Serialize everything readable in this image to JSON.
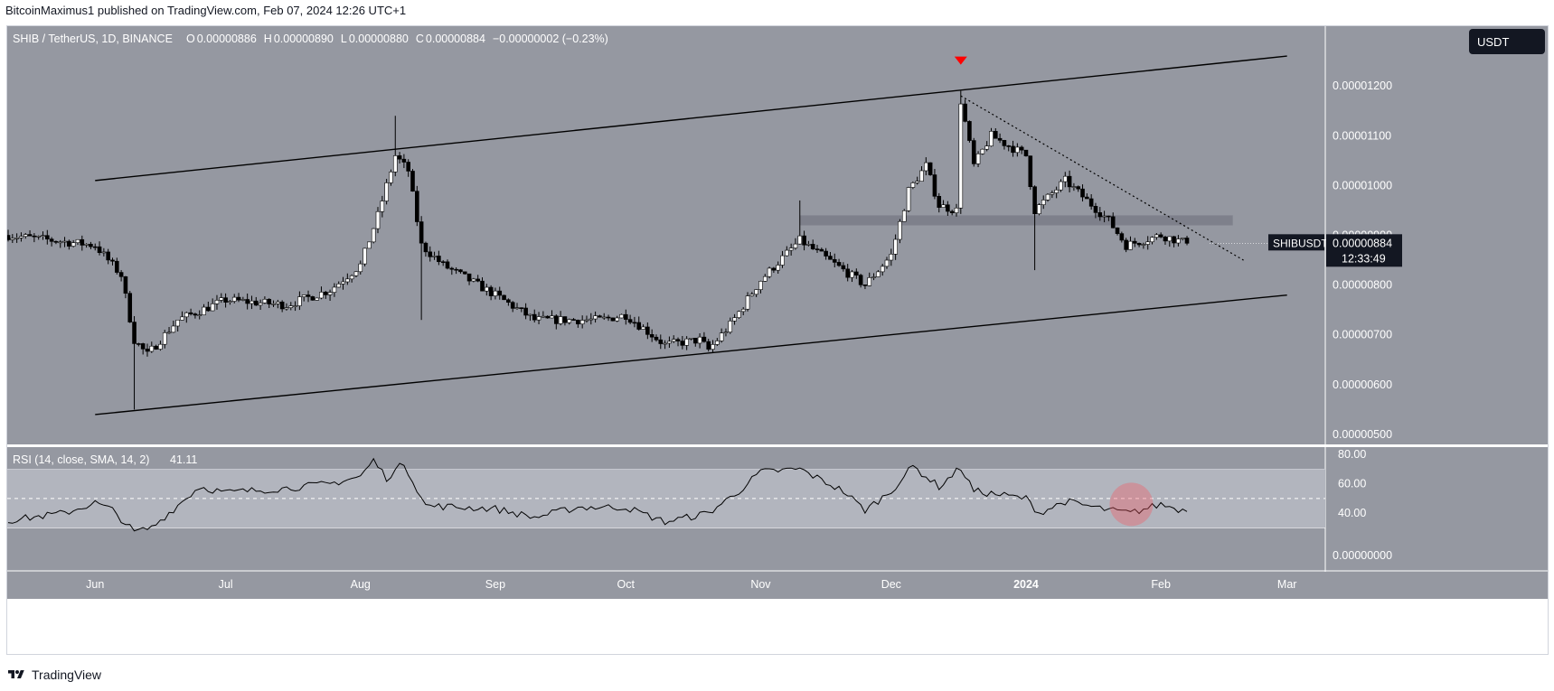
{
  "header": {
    "published": "BitcoinMaximus1 published on TradingView.com, Feb 07, 2024 12:26 UTC+1"
  },
  "legend": {
    "symbol": "SHIB / TetherUS, 1D, BINANCE",
    "o_label": "O",
    "o_value": "0.00000886",
    "h_label": "H",
    "h_value": "0.00000890",
    "l_label": "L",
    "l_value": "0.00000880",
    "c_label": "C",
    "c_value": "0.00000884",
    "change": "−0.00000002 (−0.23%)"
  },
  "currency_button": "USDT",
  "price_tag": {
    "label": "SHIBUSDT",
    "price": "0.00000884",
    "countdown": "12:33:49"
  },
  "rsi_legend": {
    "label": "RSI (14, close, SMA, 14, 2)",
    "value": "41.11"
  },
  "footer": {
    "brand": "TradingView"
  },
  "colors": {
    "background": "#9598a1",
    "bull": "#ffffff",
    "bear": "#000000",
    "trendline": "#000000",
    "zone": "#787b86",
    "rsi_band": "#b2b5be",
    "marker": "#ff0000",
    "highlight": "#f7525f"
  },
  "chart_data": [
    {
      "type": "candlestick",
      "title": "SHIB / TetherUS, 1D, BINANCE",
      "y_axis_labels": [
        "0.00001200",
        "0.00001100",
        "0.00001000",
        "0.00000900",
        "0.00000800",
        "0.00000700",
        "0.00000600",
        "0.00000500"
      ],
      "x_axis_labels": [
        "Jun",
        "Jul",
        "Aug",
        "Sep",
        "Oct",
        "Nov",
        "Dec",
        "2024",
        "Feb",
        "Mar"
      ],
      "x_axis_dates": [
        "2023-06-01",
        "2023-07-01",
        "2023-08-01",
        "2023-09-01",
        "2023-10-01",
        "2023-11-01",
        "2023-12-01",
        "2024-01-01",
        "2024-02-01",
        "2024-03-01"
      ],
      "x_range": [
        "2023-05-12",
        "2024-03-10"
      ],
      "ylim": [
        4.8e-06,
        1.32e-05
      ],
      "last_price": 8.84e-06,
      "key_points": [
        {
          "date": "2023-05-12",
          "close": 9e-06
        },
        {
          "date": "2023-06-01",
          "close": 8.8e-06
        },
        {
          "date": "2023-06-07",
          "close": 8.2e-06
        },
        {
          "date": "2023-06-10",
          "close": 6.9e-06,
          "low": 5.5e-06
        },
        {
          "date": "2023-06-13",
          "close": 6.6e-06
        },
        {
          "date": "2023-06-20",
          "close": 7.3e-06
        },
        {
          "date": "2023-07-01",
          "close": 7.7e-06
        },
        {
          "date": "2023-07-15",
          "close": 7.6e-06
        },
        {
          "date": "2023-07-25",
          "close": 7.9e-06
        },
        {
          "date": "2023-08-01",
          "close": 8.4e-06
        },
        {
          "date": "2023-08-05",
          "close": 9.4e-06
        },
        {
          "date": "2023-08-09",
          "close": 1.06e-05,
          "high": 1.14e-05
        },
        {
          "date": "2023-08-12",
          "close": 1.03e-05
        },
        {
          "date": "2023-08-15",
          "close": 8.8e-06,
          "low": 7.3e-06
        },
        {
          "date": "2023-08-20",
          "close": 8.4e-06
        },
        {
          "date": "2023-09-01",
          "close": 7.8e-06
        },
        {
          "date": "2023-09-10",
          "close": 7.3e-06
        },
        {
          "date": "2023-09-25",
          "close": 7.3e-06
        },
        {
          "date": "2023-10-01",
          "close": 7.4e-06
        },
        {
          "date": "2023-10-10",
          "close": 6.8e-06
        },
        {
          "date": "2023-10-18",
          "close": 6.9e-06
        },
        {
          "date": "2023-10-20",
          "close": 6.7e-06
        },
        {
          "date": "2023-10-25",
          "close": 7.2e-06
        },
        {
          "date": "2023-11-01",
          "close": 8.1e-06
        },
        {
          "date": "2023-11-10",
          "close": 8.9e-06,
          "high": 9.7e-06
        },
        {
          "date": "2023-11-20",
          "close": 8.3e-06
        },
        {
          "date": "2023-11-25",
          "close": 8e-06
        },
        {
          "date": "2023-12-01",
          "close": 8.6e-06
        },
        {
          "date": "2023-12-05",
          "close": 9.9e-06
        },
        {
          "date": "2023-12-09",
          "close": 1.04e-05
        },
        {
          "date": "2023-12-12",
          "close": 9.6e-06
        },
        {
          "date": "2023-12-16",
          "close": 9.5e-06
        },
        {
          "date": "2023-12-17",
          "close": 1.17e-05,
          "high": 1.19e-05
        },
        {
          "date": "2023-12-20",
          "close": 1.04e-05
        },
        {
          "date": "2023-12-24",
          "close": 1.1e-05
        },
        {
          "date": "2024-01-01",
          "close": 1.06e-05
        },
        {
          "date": "2024-01-03",
          "close": 9.5e-06,
          "low": 8.3e-06
        },
        {
          "date": "2024-01-10",
          "close": 1.01e-05
        },
        {
          "date": "2024-01-20",
          "close": 9.3e-06
        },
        {
          "date": "2024-01-24",
          "close": 8.8e-06
        },
        {
          "date": "2024-02-01",
          "close": 9e-06
        },
        {
          "date": "2024-02-07",
          "close": 8.84e-06
        }
      ],
      "annotations": {
        "channel_upper": [
          {
            "date": "2023-06-01",
            "price": 1.01e-05
          },
          {
            "date": "2024-03-01",
            "price": 1.26e-05
          }
        ],
        "channel_lower": [
          {
            "date": "2023-06-01",
            "price": 5.4e-06
          },
          {
            "date": "2024-03-01",
            "price": 7.8e-06
          }
        ],
        "descending_trendline": [
          {
            "date": "2023-12-17",
            "price": 1.18e-05
          },
          {
            "date": "2024-02-20",
            "price": 8.5e-06
          }
        ],
        "horizontal_zone": {
          "from_date": "2023-11-10",
          "to_date": "2024-03-01",
          "low": 9.2e-06,
          "high": 9.4e-06
        },
        "top_marker": {
          "date": "2023-12-17",
          "price": 1.25e-05
        }
      }
    },
    {
      "type": "line",
      "title": "RSI (14, close, SMA, 14, 2)",
      "y_axis_labels": [
        "80.00",
        "60.00",
        "40.00",
        "0.00000000"
      ],
      "ylim": [
        0,
        85
      ],
      "band": [
        30,
        70
      ],
      "midline": 50,
      "last_value": 41.11,
      "key_points": [
        {
          "date": "2023-05-12",
          "value": 35
        },
        {
          "date": "2023-05-25",
          "value": 40
        },
        {
          "date": "2023-06-01",
          "value": 47
        },
        {
          "date": "2023-06-05",
          "value": 42
        },
        {
          "date": "2023-06-10",
          "value": 27
        },
        {
          "date": "2023-06-14",
          "value": 30
        },
        {
          "date": "2023-06-25",
          "value": 58
        },
        {
          "date": "2023-07-01",
          "value": 54
        },
        {
          "date": "2023-07-15",
          "value": 57
        },
        {
          "date": "2023-07-25",
          "value": 60
        },
        {
          "date": "2023-08-01",
          "value": 65
        },
        {
          "date": "2023-08-04",
          "value": 76
        },
        {
          "date": "2023-08-07",
          "value": 64
        },
        {
          "date": "2023-08-11",
          "value": 74
        },
        {
          "date": "2023-08-16",
          "value": 45
        },
        {
          "date": "2023-09-01",
          "value": 43
        },
        {
          "date": "2023-09-10",
          "value": 37
        },
        {
          "date": "2023-09-20",
          "value": 44
        },
        {
          "date": "2023-10-01",
          "value": 44
        },
        {
          "date": "2023-10-10",
          "value": 34
        },
        {
          "date": "2023-10-20",
          "value": 40
        },
        {
          "date": "2023-10-27",
          "value": 55
        },
        {
          "date": "2023-11-01",
          "value": 68
        },
        {
          "date": "2023-11-10",
          "value": 70
        },
        {
          "date": "2023-11-20",
          "value": 55
        },
        {
          "date": "2023-11-25",
          "value": 42
        },
        {
          "date": "2023-12-01",
          "value": 55
        },
        {
          "date": "2023-12-06",
          "value": 72
        },
        {
          "date": "2023-12-12",
          "value": 58
        },
        {
          "date": "2023-12-17",
          "value": 71
        },
        {
          "date": "2023-12-20",
          "value": 55
        },
        {
          "date": "2024-01-01",
          "value": 50
        },
        {
          "date": "2024-01-04",
          "value": 40
        },
        {
          "date": "2024-01-10",
          "value": 48
        },
        {
          "date": "2024-01-20",
          "value": 42
        },
        {
          "date": "2024-01-25",
          "value": 40
        },
        {
          "date": "2024-02-01",
          "value": 46
        },
        {
          "date": "2024-02-07",
          "value": 41.11
        }
      ]
    }
  ]
}
